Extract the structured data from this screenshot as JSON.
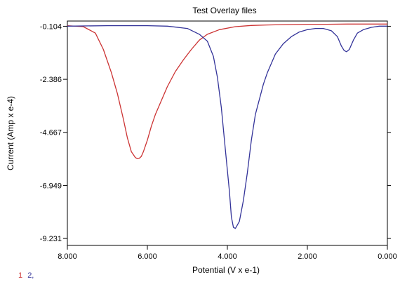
{
  "chart_data": {
    "type": "line",
    "title": "Test Overlay files",
    "xlabel": "Potential (V x e-1)",
    "ylabel": "Current (Amp x e-4)",
    "xlim": [
      8.0,
      0.0
    ],
    "ylim": [
      -9.53,
      0.12
    ],
    "x_reversed": true,
    "x_ticks": [
      8.0,
      6.0,
      4.0,
      2.0,
      0.0
    ],
    "x_tick_labels": [
      "8.000",
      "6.000",
      "4.000",
      "2.000",
      "0.000"
    ],
    "y_ticks": [
      -0.104,
      -2.386,
      -4.667,
      -6.949,
      -9.231
    ],
    "y_tick_labels": [
      "-0.104",
      "-2.386",
      "-4.667",
      "-6.949",
      "-9.231"
    ],
    "grid": false,
    "legend_position": "bottom-left",
    "series": [
      {
        "name": "1",
        "color": "#cc3333",
        "x": [
          8.0,
          7.6,
          7.3,
          7.1,
          6.9,
          6.75,
          6.6,
          6.5,
          6.4,
          6.3,
          6.25,
          6.2,
          6.15,
          6.1,
          6.0,
          5.9,
          5.8,
          5.7,
          5.6,
          5.5,
          5.3,
          5.1,
          4.9,
          4.7,
          4.5,
          4.2,
          3.8,
          3.4,
          3.0,
          2.5,
          2.0,
          1.5,
          1.0,
          0.5,
          0.0
        ],
        "y": [
          -0.08,
          -0.12,
          -0.4,
          -1.1,
          -2.1,
          -3.0,
          -4.1,
          -4.9,
          -5.5,
          -5.75,
          -5.8,
          -5.78,
          -5.7,
          -5.5,
          -5.0,
          -4.4,
          -3.9,
          -3.5,
          -3.1,
          -2.7,
          -2.05,
          -1.55,
          -1.1,
          -0.7,
          -0.45,
          -0.25,
          -0.12,
          -0.07,
          -0.05,
          -0.03,
          -0.02,
          -0.02,
          -0.01,
          -0.01,
          -0.01
        ]
      },
      {
        "name": "2,",
        "color": "#333399",
        "x": [
          8.0,
          7.0,
          6.0,
          5.5,
          5.0,
          4.7,
          4.5,
          4.35,
          4.25,
          4.15,
          4.05,
          3.95,
          3.9,
          3.85,
          3.8,
          3.7,
          3.6,
          3.5,
          3.4,
          3.3,
          3.1,
          3.0,
          2.8,
          2.6,
          2.4,
          2.2,
          2.0,
          1.8,
          1.6,
          1.4,
          1.25,
          1.15,
          1.08,
          1.02,
          0.95,
          0.85,
          0.75,
          0.6,
          0.4,
          0.2,
          0.0
        ],
        "y": [
          -0.1,
          -0.08,
          -0.08,
          -0.1,
          -0.2,
          -0.45,
          -0.75,
          -1.4,
          -2.3,
          -3.6,
          -5.4,
          -7.2,
          -8.3,
          -8.75,
          -8.8,
          -8.5,
          -7.6,
          -6.4,
          -5.0,
          -3.9,
          -2.6,
          -2.1,
          -1.3,
          -0.85,
          -0.55,
          -0.35,
          -0.25,
          -0.2,
          -0.2,
          -0.3,
          -0.55,
          -0.95,
          -1.15,
          -1.2,
          -1.1,
          -0.7,
          -0.4,
          -0.25,
          -0.15,
          -0.1,
          -0.1
        ]
      }
    ]
  }
}
